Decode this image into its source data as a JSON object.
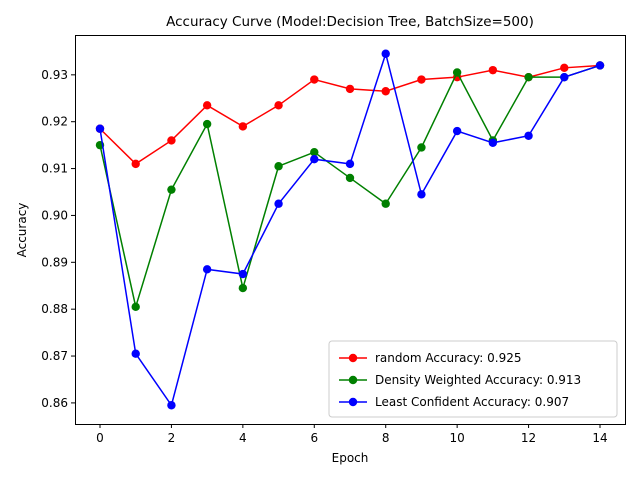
{
  "chart_data": {
    "type": "line",
    "title": "Accuracy Curve (Model:Decision Tree, BatchSize=500)",
    "xlabel": "Epoch",
    "ylabel": "Accuracy",
    "xlim": [
      -0.7,
      14.7
    ],
    "ylim": [
      0.8555,
      0.9385
    ],
    "xticks": [
      0,
      2,
      4,
      6,
      8,
      10,
      12,
      14
    ],
    "xtick_labels": [
      "0",
      "2",
      "4",
      "6",
      "8",
      "10",
      "12",
      "14"
    ],
    "yticks": [
      0.86,
      0.87,
      0.88,
      0.89,
      0.9,
      0.91,
      0.92,
      0.93
    ],
    "ytick_labels": [
      "0.86",
      "0.87",
      "0.88",
      "0.89",
      "0.90",
      "0.91",
      "0.92",
      "0.93"
    ],
    "grid": false,
    "legend_position": "lower-right",
    "x": [
      0,
      1,
      2,
      3,
      4,
      5,
      6,
      7,
      8,
      9,
      10,
      11,
      12,
      13,
      14
    ],
    "series": [
      {
        "name": "random Accuracy: 0.925",
        "color": "#ff0000",
        "values": [
          0.9185,
          0.911,
          0.916,
          0.9235,
          0.919,
          0.9235,
          0.929,
          0.927,
          0.9265,
          0.929,
          0.9295,
          0.931,
          0.9295,
          0.9315,
          0.932
        ]
      },
      {
        "name": "Density Weighted Accuracy: 0.913",
        "color": "#008000",
        "values": [
          0.915,
          0.8805,
          0.9055,
          0.9195,
          0.8845,
          0.9105,
          0.9135,
          0.908,
          0.9025,
          0.9145,
          0.9305,
          0.916,
          0.9295,
          0.9295,
          0.932
        ]
      },
      {
        "name": "Least Confident Accuracy: 0.907",
        "color": "#0000ff",
        "values": [
          0.9185,
          0.8705,
          0.8595,
          0.8885,
          0.8875,
          0.9025,
          0.912,
          0.911,
          0.9345,
          0.9045,
          0.918,
          0.9155,
          0.917,
          0.9295,
          0.932
        ]
      }
    ]
  }
}
